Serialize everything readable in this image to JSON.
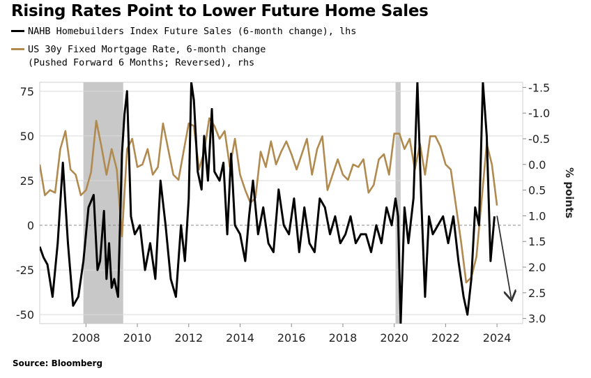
{
  "title": "Rising Rates Point to Lower Future Home Sales",
  "legend": {
    "series1": "NAHB Homebuilders Index Future Sales (6-month change), lhs",
    "series2_line1": "US 30y Fixed Mortgage Rate, 6-month change",
    "series2_line2": "(Pushed Forward 6 Months; Reversed), rhs"
  },
  "source": "Source: Bloomberg",
  "colors": {
    "nahb": "#000000",
    "mortgage": "#b08a4e",
    "recession": "#c8c8c8",
    "grid": "#d9d9d9",
    "arrow": "#333333"
  },
  "chart_data": {
    "type": "line",
    "title": "Rising Rates Point to Lower Future Home Sales",
    "xlabel": "",
    "ylabel_left": "",
    "ylabel_right": "% points",
    "xlim": [
      2006.2,
      2025.0
    ],
    "ylim_left": [
      -55,
      80
    ],
    "ylim_right": [
      3.1,
      -1.6
    ],
    "x_ticks": [
      2008,
      2010,
      2012,
      2014,
      2016,
      2018,
      2020,
      2022,
      2024
    ],
    "x_tick_labels": [
      "2008",
      "2010",
      "2012",
      "2014",
      "2016",
      "2018",
      "2020",
      "2022",
      "2024"
    ],
    "y_left_ticks": [
      75,
      50,
      25,
      0,
      -25,
      -50
    ],
    "y_left_tick_labels": [
      "75",
      "50",
      "25",
      "0",
      "-25",
      "-50"
    ],
    "y_right_ticks": [
      -1.5,
      -1.0,
      -0.5,
      0.0,
      0.5,
      1.0,
      1.5,
      2.0,
      2.5,
      3.0
    ],
    "y_right_tick_labels": [
      "-1.5",
      "-1.0",
      "-0.5",
      "0.0",
      "0.5",
      "1.0",
      "1.5",
      "2.0",
      "2.5",
      "3.0"
    ],
    "zero_line_left": 0,
    "recessions": [
      [
        2007.9,
        2009.45
      ],
      [
        2020.05,
        2020.25
      ]
    ],
    "series": [
      {
        "name": "NAHB Homebuilders Index Future Sales (6-month change), lhs",
        "axis": "left",
        "x": [
          2006.2,
          2006.35,
          2006.5,
          2006.7,
          2006.9,
          2007.1,
          2007.3,
          2007.5,
          2007.7,
          2007.9,
          2008.1,
          2008.3,
          2008.45,
          2008.55,
          2008.7,
          2008.8,
          2008.9,
          2009.0,
          2009.1,
          2009.25,
          2009.4,
          2009.5,
          2009.6,
          2009.75,
          2009.9,
          2010.1,
          2010.3,
          2010.5,
          2010.7,
          2010.9,
          2011.1,
          2011.3,
          2011.5,
          2011.7,
          2011.85,
          2012.0,
          2012.1,
          2012.2,
          2012.35,
          2012.5,
          2012.6,
          2012.75,
          2012.9,
          2013.0,
          2013.2,
          2013.35,
          2013.5,
          2013.65,
          2013.8,
          2014.0,
          2014.2,
          2014.35,
          2014.5,
          2014.7,
          2014.9,
          2015.1,
          2015.3,
          2015.5,
          2015.7,
          2015.9,
          2016.1,
          2016.3,
          2016.5,
          2016.7,
          2016.9,
          2017.1,
          2017.3,
          2017.5,
          2017.7,
          2017.9,
          2018.1,
          2018.3,
          2018.5,
          2018.7,
          2018.9,
          2019.1,
          2019.3,
          2019.5,
          2019.7,
          2019.9,
          2020.05,
          2020.15,
          2020.25,
          2020.4,
          2020.55,
          2020.75,
          2020.9,
          2021.05,
          2021.2,
          2021.35,
          2021.5,
          2021.7,
          2021.9,
          2022.1,
          2022.3,
          2022.5,
          2022.7,
          2022.85,
          2023.0,
          2023.15,
          2023.3,
          2023.45,
          2023.6,
          2023.75,
          2023.9
        ],
        "values": [
          -12,
          -18,
          -22,
          -40,
          -10,
          35,
          -10,
          -45,
          -40,
          -20,
          10,
          17,
          -25,
          -20,
          8,
          -30,
          -10,
          -35,
          -30,
          -40,
          40,
          62,
          75,
          5,
          -5,
          0,
          -25,
          -10,
          -30,
          25,
          0,
          -30,
          -40,
          0,
          -20,
          15,
          80,
          70,
          30,
          20,
          50,
          25,
          65,
          30,
          25,
          35,
          -5,
          40,
          0,
          -5,
          -20,
          5,
          25,
          -5,
          10,
          -10,
          -15,
          20,
          0,
          -5,
          15,
          -15,
          10,
          -10,
          -15,
          15,
          10,
          -5,
          5,
          -10,
          -5,
          5,
          -10,
          -5,
          -5,
          -15,
          0,
          -10,
          10,
          0,
          15,
          5,
          -55,
          10,
          -10,
          15,
          80,
          15,
          -40,
          5,
          -5,
          0,
          5,
          -10,
          5,
          -20,
          -40,
          -50,
          -30,
          10,
          0,
          80,
          50,
          -20,
          5
        ],
        "color": "#000000"
      },
      {
        "name": "US 30y Fixed Mortgage Rate, 6-month change (Pushed Forward 6 Months; Reversed), rhs",
        "axis": "right",
        "x": [
          2006.2,
          2006.4,
          2006.6,
          2006.8,
          2007.0,
          2007.2,
          2007.4,
          2007.6,
          2007.8,
          2008.0,
          2008.2,
          2008.4,
          2008.6,
          2008.8,
          2009.0,
          2009.2,
          2009.4,
          2009.6,
          2009.8,
          2010.0,
          2010.2,
          2010.4,
          2010.6,
          2010.8,
          2011.0,
          2011.2,
          2011.4,
          2011.6,
          2011.8,
          2012.0,
          2012.2,
          2012.4,
          2012.6,
          2012.8,
          2013.0,
          2013.2,
          2013.4,
          2013.6,
          2013.8,
          2014.0,
          2014.2,
          2014.4,
          2014.6,
          2014.8,
          2015.0,
          2015.2,
          2015.4,
          2015.6,
          2015.8,
          2016.0,
          2016.2,
          2016.4,
          2016.6,
          2016.8,
          2017.0,
          2017.2,
          2017.4,
          2017.6,
          2017.8,
          2018.0,
          2018.2,
          2018.4,
          2018.6,
          2018.8,
          2019.0,
          2019.2,
          2019.4,
          2019.6,
          2019.8,
          2020.0,
          2020.2,
          2020.4,
          2020.6,
          2020.8,
          2021.0,
          2021.2,
          2021.4,
          2021.6,
          2021.8,
          2022.0,
          2022.2,
          2022.4,
          2022.6,
          2022.8,
          2023.0,
          2023.2,
          2023.4,
          2023.6,
          2023.8,
          2024.0
        ],
        "values": [
          0.0,
          0.6,
          0.5,
          0.55,
          -0.3,
          -0.65,
          0.1,
          0.2,
          0.6,
          0.5,
          0.15,
          -0.85,
          -0.35,
          0.2,
          -0.3,
          0.1,
          1.4,
          -0.3,
          -0.5,
          0.05,
          0.0,
          -0.3,
          0.2,
          0.05,
          -0.8,
          -0.3,
          0.2,
          0.3,
          -0.25,
          -0.8,
          -0.75,
          0.1,
          -0.25,
          -0.9,
          -0.75,
          -0.5,
          -0.65,
          0.05,
          -0.5,
          0.2,
          0.5,
          0.75,
          0.65,
          -0.25,
          0.05,
          -0.45,
          0.0,
          -0.25,
          -0.45,
          -0.2,
          0.1,
          -0.2,
          -0.5,
          0.2,
          -0.3,
          -0.55,
          0.5,
          0.2,
          -0.1,
          0.2,
          0.3,
          0.0,
          0.05,
          -0.1,
          0.55,
          0.4,
          -0.1,
          -0.2,
          0.2,
          -0.6,
          -0.6,
          -0.3,
          -0.5,
          0.1,
          -0.4,
          0.2,
          -0.55,
          -0.55,
          -0.35,
          0.0,
          0.1,
          0.8,
          1.5,
          2.3,
          2.2,
          1.8,
          0.7,
          -0.4,
          0.0,
          0.8
        ],
        "color": "#b08a4e"
      }
    ],
    "annotations": [
      {
        "type": "arrow",
        "from": [
          2024.0,
          1.0
        ],
        "to": [
          2024.55,
          2.6
        ],
        "axis": "right",
        "text": ""
      }
    ]
  }
}
